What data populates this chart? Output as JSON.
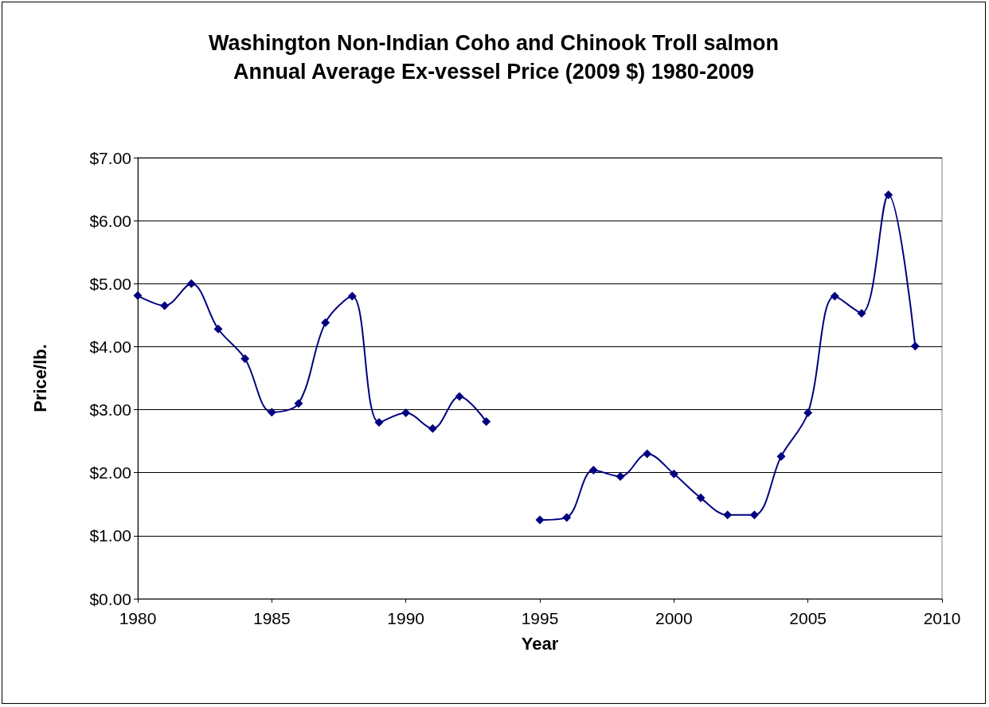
{
  "chart_data": {
    "type": "line",
    "title": "Washington Non-Indian Coho and Chinook Troll salmon\nAnnual Average Ex-vessel Price (2009 $) 1980-2009",
    "xlabel": "Year",
    "ylabel": "Price/lb.",
    "x": [
      1980,
      1981,
      1982,
      1983,
      1984,
      1985,
      1986,
      1987,
      1988,
      1989,
      1990,
      1991,
      1992,
      1993,
      1994,
      1995,
      1996,
      1997,
      1998,
      1999,
      2000,
      2001,
      2002,
      2003,
      2004,
      2005,
      2006,
      2007,
      2008,
      2009
    ],
    "series": [
      {
        "color": "#000080",
        "values": [
          4.81,
          4.65,
          5.0,
          4.28,
          3.81,
          2.96,
          3.1,
          4.38,
          4.8,
          2.8,
          2.95,
          2.7,
          3.21,
          2.81,
          null,
          1.25,
          1.29,
          2.04,
          1.94,
          2.3,
          1.98,
          1.6,
          1.33,
          1.33,
          2.26,
          2.95,
          4.8,
          4.53,
          6.41,
          4.01
        ]
      }
    ],
    "xlim": [
      1980,
      2010
    ],
    "xticks": [
      1980,
      1985,
      1990,
      1995,
      2000,
      2005,
      2010
    ],
    "ylim": [
      0,
      7
    ],
    "yticks": [
      {
        "value": 0,
        "label": "$0.00"
      },
      {
        "value": 1,
        "label": "$1.00"
      },
      {
        "value": 2,
        "label": "$2.00"
      },
      {
        "value": 3,
        "label": "$3.00"
      },
      {
        "value": 4,
        "label": "$4.00"
      },
      {
        "value": 5,
        "label": "$5.00"
      },
      {
        "value": 6,
        "label": "$6.00"
      },
      {
        "value": 7,
        "label": "$7.00"
      }
    ],
    "grid": "y",
    "marker": "diamond",
    "line_style": "solid"
  }
}
